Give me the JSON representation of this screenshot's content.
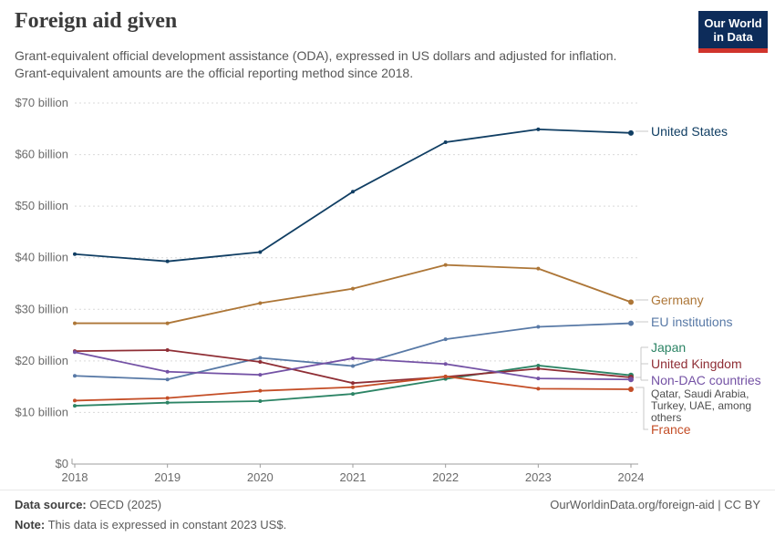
{
  "header": {
    "title": "Foreign aid given",
    "subtitle_line1": "Grant-equivalent official development assistance (ODA), expressed in US dollars and adjusted for inflation.",
    "subtitle_line2": "Grant-equivalent amounts are the official reporting method since 2018.",
    "logo": {
      "line1": "Our World",
      "line2": "in Data"
    }
  },
  "chart_data": {
    "type": "line",
    "title": "Foreign aid given",
    "x": [
      2018,
      2019,
      2020,
      2021,
      2022,
      2023,
      2024
    ],
    "x_tick_labels": [
      "2018",
      "2019",
      "2020",
      "2021",
      "2022",
      "2023",
      "2024"
    ],
    "y_axis": {
      "unit": "US dollars (billions), constant 2023 US$",
      "ticks": [
        0,
        10,
        20,
        30,
        40,
        50,
        60,
        70
      ],
      "tick_labels": [
        "$0",
        "$10 billion",
        "$20 billion",
        "$30 billion",
        "$40 billion",
        "$50 billion",
        "$60 billion",
        "$70 billion"
      ],
      "ylim": [
        0,
        70
      ]
    },
    "grid": true,
    "legend_position": "right-end-labels",
    "series": [
      {
        "name": "United States",
        "color": "#103e63",
        "values": [
          40.7,
          39.3,
          41.1,
          52.8,
          62.4,
          64.9,
          64.2
        ]
      },
      {
        "name": "Germany",
        "color": "#ad7637",
        "values": [
          27.3,
          27.3,
          31.2,
          34.0,
          38.6,
          37.9,
          31.4
        ]
      },
      {
        "name": "EU institutions",
        "color": "#5879a6",
        "values": [
          17.1,
          16.4,
          20.6,
          19.0,
          24.2,
          26.6,
          27.3
        ]
      },
      {
        "name": "Japan",
        "color": "#2c8465",
        "values": [
          11.3,
          11.9,
          12.2,
          13.6,
          16.5,
          19.1,
          17.2
        ]
      },
      {
        "name": "United Kingdom",
        "color": "#8f2e35",
        "values": [
          21.9,
          22.1,
          19.8,
          15.7,
          16.9,
          18.5,
          16.8
        ]
      },
      {
        "name": "Non-DAC countries",
        "color": "#7452a5",
        "values": [
          21.7,
          17.9,
          17.3,
          20.5,
          19.4,
          16.6,
          16.4
        ],
        "note": "Qatar, Saudi Arabia, Turkey, UAE, among others"
      },
      {
        "name": "France",
        "color": "#c44e27",
        "values": [
          12.3,
          12.8,
          14.2,
          14.9,
          17.0,
          14.6,
          14.5
        ]
      }
    ]
  },
  "footer": {
    "source_label": "Data source:",
    "source_value": " OECD (2025)",
    "link": "OurWorldinData.org/foreign-aid | CC BY",
    "note_label": "Note:",
    "note_value": " This data is expressed in constant 2023 US$."
  }
}
